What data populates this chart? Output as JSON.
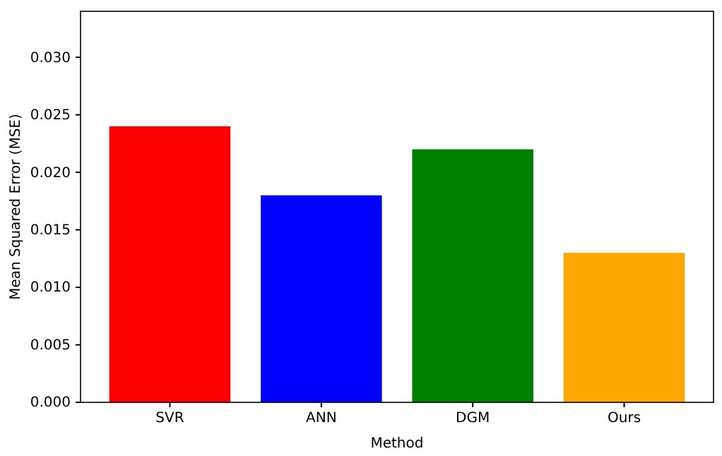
{
  "chart_data": {
    "type": "bar",
    "xlabel": "Method",
    "ylabel": "Mean Squared Error (MSE)",
    "categories": [
      "SVR",
      "ANN",
      "DGM",
      "Ours"
    ],
    "values": [
      0.024,
      0.018,
      0.022,
      0.013
    ],
    "colors": [
      "#ff0000",
      "#0000ff",
      "#008000",
      "#ffa500"
    ],
    "ylim": [
      0,
      0.034
    ],
    "yticks": [
      {
        "value": 0,
        "label": "0.000"
      },
      {
        "value": 0.005,
        "label": "0.005"
      },
      {
        "value": 0.01,
        "label": "0.010"
      },
      {
        "value": 0.015,
        "label": "0.015"
      },
      {
        "value": 0.02,
        "label": "0.020"
      },
      {
        "value": 0.025,
        "label": "0.025"
      },
      {
        "value": 0.03,
        "label": "0.030"
      }
    ],
    "grid": false,
    "legend": false
  }
}
